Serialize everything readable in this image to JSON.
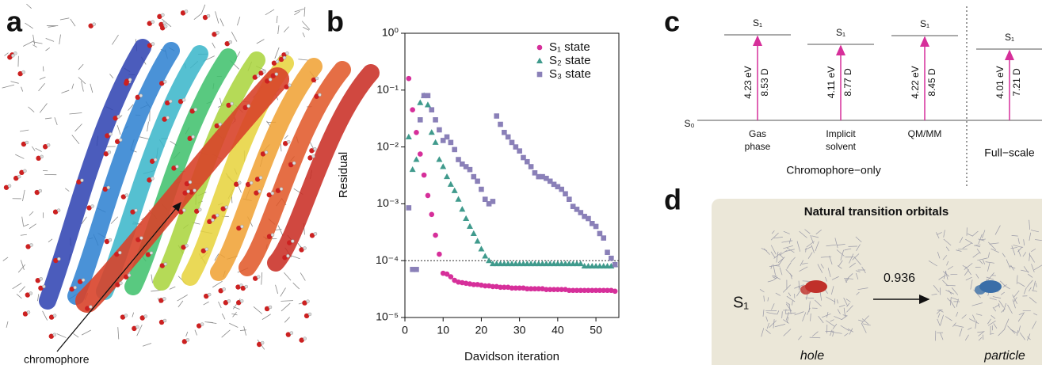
{
  "panel_a": {
    "letter": "a",
    "annotation": "chromophore"
  },
  "chart_data": {
    "type": "scatter",
    "letter": "b",
    "xlabel": "Davidson iteration",
    "ylabel": "Residual",
    "x": [
      1,
      2,
      3,
      4,
      5,
      6,
      7,
      8,
      9,
      10,
      11,
      12,
      13,
      14,
      15,
      16,
      17,
      18,
      19,
      20,
      21,
      22,
      23,
      24,
      25,
      26,
      27,
      28,
      29,
      30,
      31,
      32,
      33,
      34,
      35,
      36,
      37,
      38,
      39,
      40,
      41,
      42,
      43,
      44,
      45,
      46,
      47,
      48,
      49,
      50,
      51,
      52,
      53,
      54,
      55
    ],
    "series": [
      {
        "name": "S₁ state",
        "color": "#d62f9a",
        "marker": "circle",
        "values": [
          0.16,
          0.045,
          0.018,
          0.0075,
          0.0032,
          0.0014,
          0.00065,
          0.00028,
          0.00013,
          6e-05,
          5.8e-05,
          5.2e-05,
          4.5e-05,
          4.2e-05,
          4.1e-05,
          4e-05,
          3.9e-05,
          3.8e-05,
          3.8e-05,
          3.7e-05,
          3.6e-05,
          3.6e-05,
          3.5e-05,
          3.5e-05,
          3.4e-05,
          3.4e-05,
          3.4e-05,
          3.3e-05,
          3.3e-05,
          3.3e-05,
          3.3e-05,
          3.2e-05,
          3.2e-05,
          3.2e-05,
          3.2e-05,
          3.2e-05,
          3.1e-05,
          3.1e-05,
          3.1e-05,
          3.1e-05,
          3.1e-05,
          3.1e-05,
          3e-05,
          3e-05,
          3e-05,
          3e-05,
          3e-05,
          3e-05,
          3e-05,
          3e-05,
          3e-05,
          3e-05,
          3e-05,
          3e-05,
          2.9e-05
        ]
      },
      {
        "name": "S₂ state",
        "color": "#3f9a8c",
        "marker": "triangle",
        "values": [
          0.015,
          0.004,
          0.006,
          0.06,
          0.08,
          0.055,
          0.018,
          0.012,
          0.006,
          0.0045,
          0.003,
          0.0022,
          0.0017,
          0.0012,
          0.0008,
          0.00055,
          0.0004,
          0.0003,
          0.00022,
          0.00016,
          0.00012,
          0.0001,
          8.8e-05,
          8.8e-05,
          8.8e-05,
          8.8e-05,
          8.8e-05,
          8.8e-05,
          8.8e-05,
          8.8e-05,
          8.8e-05,
          8.8e-05,
          8.8e-05,
          8.8e-05,
          8.8e-05,
          8.8e-05,
          8.8e-05,
          8.8e-05,
          8.8e-05,
          8.8e-05,
          8.8e-05,
          8.8e-05,
          8.8e-05,
          8.8e-05,
          8.8e-05,
          8.8e-05,
          8e-05,
          8e-05,
          8e-05,
          8e-05,
          8e-05,
          8e-05,
          8e-05,
          8e-05,
          8.5e-05
        ]
      },
      {
        "name": "S₃ state",
        "color": "#8a80b8",
        "marker": "square",
        "values": [
          0.00085,
          7e-05,
          7e-05,
          0.03,
          0.08,
          0.08,
          0.045,
          0.03,
          0.02,
          0.013,
          0.015,
          0.012,
          0.009,
          0.006,
          0.005,
          0.0045,
          0.004,
          0.003,
          0.0025,
          0.0018,
          0.0012,
          0.001,
          0.0011,
          0.035,
          0.025,
          0.018,
          0.015,
          0.012,
          0.01,
          0.0085,
          0.0065,
          0.0055,
          0.0045,
          0.0035,
          0.003,
          0.003,
          0.0028,
          0.0025,
          0.0022,
          0.002,
          0.0018,
          0.0015,
          0.0012,
          0.0009,
          0.0008,
          0.0007,
          0.0006,
          0.00055,
          0.00045,
          0.0004,
          0.0003,
          0.00025,
          0.00014,
          0.00011,
          8.5e-05
        ]
      }
    ],
    "xlim": [
      0,
      56
    ],
    "xticks": [
      0,
      10,
      20,
      30,
      40,
      50
    ],
    "ylim": [
      1e-05,
      1
    ],
    "log_y": true,
    "yticks": [
      {
        "value": 1e-05,
        "label": "10⁻⁵"
      },
      {
        "value": 0.0001,
        "label": "10⁻⁴"
      },
      {
        "value": 0.001,
        "label": "10⁻³"
      },
      {
        "value": 0.01,
        "label": "10⁻²"
      },
      {
        "value": 0.1,
        "label": "10⁻¹"
      },
      {
        "value": 1,
        "label": "10⁰"
      }
    ],
    "hline": 0.0001,
    "legend": "upper right"
  },
  "panel_c": {
    "letter": "c",
    "ground_state": "S₀",
    "columns": [
      {
        "state": "S₁",
        "energy": "4.23 eV",
        "dipole": "8.53 D",
        "label": [
          "Gas",
          "phase"
        ]
      },
      {
        "state": "S₁",
        "energy": "4.11 eV",
        "dipole": "8.77 D",
        "label": [
          "Implicit",
          "solvent"
        ]
      },
      {
        "state": "S₁",
        "energy": "4.22 eV",
        "dipole": "8.45 D",
        "label": [
          "QM/MM"
        ]
      },
      {
        "state": "S₁",
        "energy": "4.01 eV",
        "dipole": "7.21 D",
        "label": [
          "Full−scale"
        ]
      }
    ],
    "group_label": "Chromophore−only"
  },
  "panel_d": {
    "letter": "d",
    "title": "Natural transition orbitals",
    "state": "S₁",
    "weight": "0.936",
    "left_label": "hole",
    "right_label": "particle"
  }
}
